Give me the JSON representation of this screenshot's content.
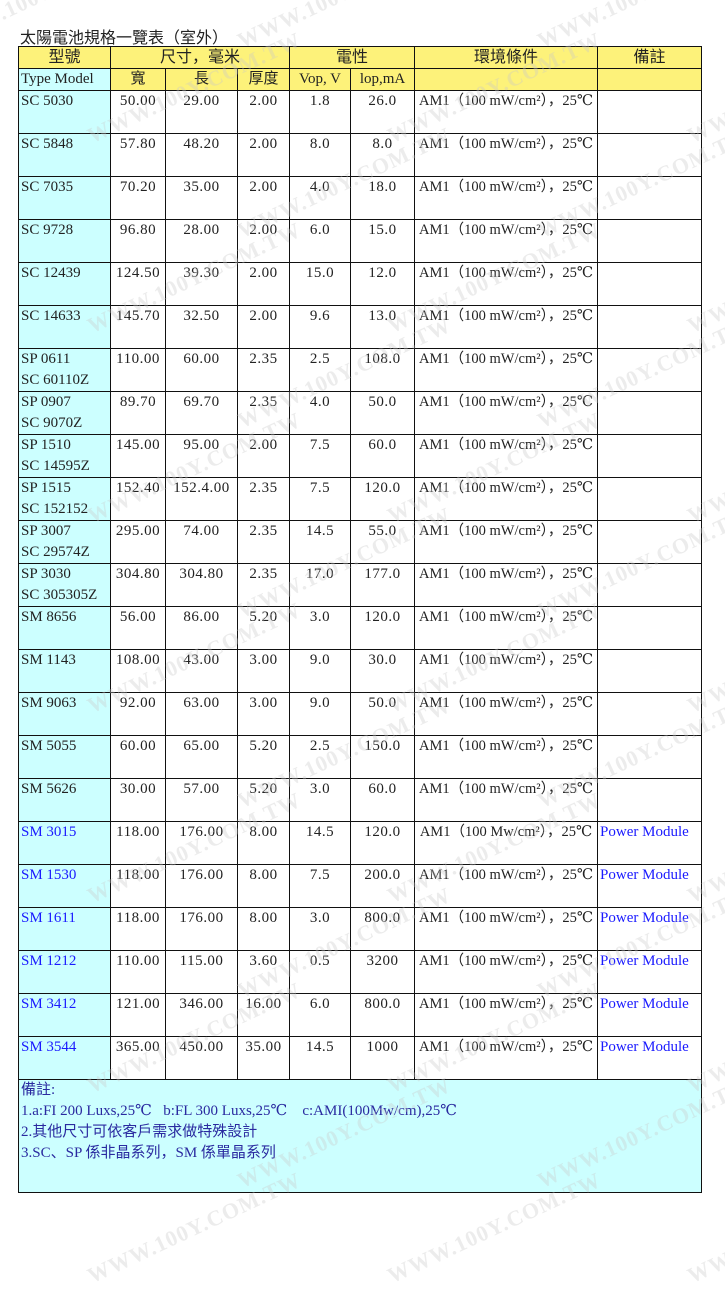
{
  "title": "太陽電池規格一覽表（室外）",
  "watermark": "WWW.100Y.COM.TW",
  "header": {
    "model": "型號",
    "size": "尺寸，毫米",
    "electrical": "電性",
    "environment": "環境條件",
    "remarks": "備註"
  },
  "subheader": {
    "model": "Type Model",
    "width": "寬",
    "length": "長",
    "thickness": "厚度",
    "vop": "Vop, V",
    "iop": "lop,mA"
  },
  "colors": {
    "header": "#fdf27a",
    "model_bg": "#ccffff",
    "link_blue": "#1a1aff"
  },
  "rows": [
    {
      "model": [
        "SC 5030"
      ],
      "w": "50.00",
      "l": "29.00",
      "t": "2.00",
      "vop": "1.8",
      "iop": "26.0",
      "env": "AM1（100 mW/cm²），25℃",
      "note": ""
    },
    {
      "model": [
        "SC 5848"
      ],
      "w": "57.80",
      "l": "48.20",
      "t": "2.00",
      "vop": "8.0",
      "iop": "8.0",
      "env": "AM1（100 mW/cm²），25℃",
      "note": ""
    },
    {
      "model": [
        "SC 7035"
      ],
      "w": "70.20",
      "l": "35.00",
      "t": "2.00",
      "vop": "4.0",
      "iop": "18.0",
      "env": "AM1（100 mW/cm²），25℃",
      "note": ""
    },
    {
      "model": [
        "SC 9728"
      ],
      "w": "96.80",
      "l": "28.00",
      "t": "2.00",
      "vop": "6.0",
      "iop": "15.0",
      "env": "AM1（100 mW/cm²），25℃",
      "note": ""
    },
    {
      "model": [
        "SC 12439"
      ],
      "w": "124.50",
      "l": "39.30",
      "t": "2.00",
      "vop": "15.0",
      "iop": "12.0",
      "env": "AM1（100 mW/cm²），25℃",
      "note": ""
    },
    {
      "model": [
        "SC 14633"
      ],
      "w": "145.70",
      "l": "32.50",
      "t": "2.00",
      "vop": "9.6",
      "iop": "13.0",
      "env": "AM1（100 mW/cm²），25℃",
      "note": ""
    },
    {
      "model": [
        "SP 0611",
        "SC 60110Z"
      ],
      "w": "110.00",
      "l": "60.00",
      "t": "2.35",
      "vop": "2.5",
      "iop": "108.0",
      "env": "AM1（100 mW/cm²），25℃",
      "note": ""
    },
    {
      "model": [
        "SP 0907",
        "SC 9070Z"
      ],
      "w": "89.70",
      "l": "69.70",
      "t": "2.35",
      "vop": "4.0",
      "iop": "50.0",
      "env": "AM1（100 mW/cm²），25℃",
      "note": ""
    },
    {
      "model": [
        "SP 1510",
        "SC 14595Z"
      ],
      "w": "145.00",
      "l": "95.00",
      "t": "2.00",
      "vop": "7.5",
      "iop": "60.0",
      "env": "AM1（100 mW/cm²），25℃",
      "note": ""
    },
    {
      "model": [
        "SP 1515",
        "SC 152152"
      ],
      "w": "152.40",
      "l": "152.4.00",
      "t": "2.35",
      "vop": "7.5",
      "iop": "120.0",
      "env": "AM1（100 mW/cm²），25℃",
      "note": ""
    },
    {
      "model": [
        "SP 3007",
        "SC 29574Z"
      ],
      "w": "295.00",
      "l": "74.00",
      "t": "2.35",
      "vop": "14.5",
      "iop": "55.0",
      "env": "AM1（100 mW/cm²），25℃",
      "note": ""
    },
    {
      "model": [
        "SP 3030",
        "SC 305305Z"
      ],
      "w": "304.80",
      "l": "304.80",
      "t": "2.35",
      "vop": "17.0",
      "iop": "177.0",
      "env": "AM1（100 mW/cm²），25℃",
      "note": ""
    },
    {
      "model": [
        "SM 8656"
      ],
      "w": "56.00",
      "l": "86.00",
      "t": "5.20",
      "vop": "3.0",
      "iop": "120.0",
      "env": "AM1（100 mW/cm²），25℃",
      "note": ""
    },
    {
      "model": [
        "SM 1143"
      ],
      "w": "108.00",
      "l": "43.00",
      "t": "3.00",
      "vop": "9.0",
      "iop": "30.0",
      "env": "AM1（100 mW/cm²），25℃",
      "note": ""
    },
    {
      "model": [
        "SM 9063"
      ],
      "w": "92.00",
      "l": "63.00",
      "t": "3.00",
      "vop": "9.0",
      "iop": "50.0",
      "env": "AM1（100 mW/cm²），25℃",
      "note": ""
    },
    {
      "model": [
        "SM 5055"
      ],
      "w": "60.00",
      "l": "65.00",
      "t": "5.20",
      "vop": "2.5",
      "iop": "150.0",
      "env": "AM1（100 mW/cm²），25℃",
      "note": ""
    },
    {
      "model": [
        "SM 5626"
      ],
      "w": "30.00",
      "l": "57.00",
      "t": "5.20",
      "vop": "3.0",
      "iop": "60.0",
      "env": "AM1（100 mW/cm²），25℃",
      "note": ""
    },
    {
      "model": [
        "SM 3015"
      ],
      "w": "118.00",
      "l": "176.00",
      "t": "8.00",
      "vop": "14.5",
      "iop": "120.0",
      "env": "AM1（100 Mw/cm²），25℃",
      "note": "Power Module",
      "blue": true
    },
    {
      "model": [
        "SM 1530"
      ],
      "w": "118.00",
      "l": "176.00",
      "t": "8.00",
      "vop": "7.5",
      "iop": "200.0",
      "env": "AM1（100 mW/cm²），25℃",
      "note": "Power Module",
      "blue": true
    },
    {
      "model": [
        "SM 1611"
      ],
      "w": "118.00",
      "l": "176.00",
      "t": "8.00",
      "vop": "3.0",
      "iop": "800.0",
      "env": "AM1（100 mW/cm²），25℃",
      "note": "Power Module",
      "blue": true
    },
    {
      "model": [
        "SM 1212"
      ],
      "w": "110.00",
      "l": "115.00",
      "t": "3.60",
      "vop": "0.5",
      "iop": "3200",
      "env": "AM1（100 mW/cm²），25℃",
      "note": "Power Module",
      "blue": true
    },
    {
      "model": [
        "SM 3412"
      ],
      "w": "121.00",
      "l": "346.00",
      "t": "16.00",
      "vop": "6.0",
      "iop": "800.0",
      "env": "AM1（100 mW/cm²），25℃",
      "note": "Power Module",
      "blue": true
    },
    {
      "model": [
        "SM 3544"
      ],
      "w": "365.00",
      "l": "450.00",
      "t": "35.00",
      "vop": "14.5",
      "iop": "1000",
      "env": "AM1（100 mW/cm²），25℃",
      "note": "Power Module",
      "blue": true
    }
  ],
  "notes": {
    "heading": "備註:",
    "lines": [
      "1.a:FI 200 Luxs,25℃   b:FL 300 Luxs,25℃    c:AMI(100Mw/cm),25℃",
      "2.其他尺寸可依客戶需求做特殊設計",
      "3.SC、SP 係非晶系列，SM 係單晶系列"
    ]
  }
}
